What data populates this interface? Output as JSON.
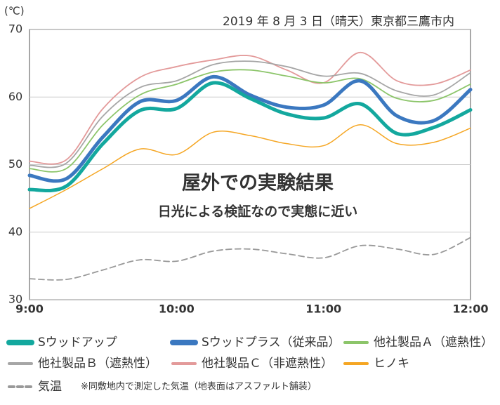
{
  "chart_data": {
    "type": "line",
    "title": "2019 年 8 月 3 日（晴天）東京都三鷹市内",
    "y_label": "(℃)",
    "annotations": [
      "屋外での実験結果",
      "日光による検証なので実態に近い"
    ],
    "note": "※同敷地内で測定した気温（地表面はアスファルト舗装）",
    "categories": [
      "9:00",
      null,
      null,
      null,
      "10:00",
      null,
      null,
      null,
      "11:00",
      null,
      null,
      null,
      "12:00"
    ],
    "ylim": [
      30,
      70
    ],
    "yticks": [
      30,
      40,
      50,
      60,
      70
    ],
    "grid": true,
    "series": [
      {
        "name": "Sウッドアップ",
        "color": "#13a89e",
        "line_width": 5,
        "dashed": false,
        "values": [
          46.3,
          46.8,
          53.1,
          58.0,
          58.3,
          62.1,
          59.8,
          57.5,
          56.9,
          59.0,
          54.6,
          55.5,
          58.1
        ]
      },
      {
        "name": "Sウッドプラス（従来品）",
        "color": "#3b78c0",
        "line_width": 5,
        "dashed": false,
        "values": [
          48.4,
          47.9,
          54.1,
          59.3,
          59.5,
          63.0,
          60.3,
          58.5,
          58.8,
          62.4,
          57.2,
          56.5,
          61.1
        ]
      },
      {
        "name": "他社製品Ａ（遮熱性）",
        "color": "#8cc56a",
        "line_width": 1.8,
        "dashed": false,
        "values": [
          49.4,
          49.4,
          55.9,
          60.3,
          61.9,
          63.7,
          64.0,
          63.1,
          62.1,
          62.7,
          59.8,
          59.5,
          61.9
        ]
      },
      {
        "name": "他社製品Ｂ（遮熱性）",
        "color": "#a6a6a6",
        "line_width": 1.8,
        "dashed": false,
        "values": [
          49.9,
          50.2,
          57.2,
          61.4,
          62.4,
          64.8,
          65.3,
          64.5,
          63.1,
          63.5,
          60.9,
          60.3,
          63.6
        ]
      },
      {
        "name": "他社製品Ｃ（非遮熱性）",
        "color": "#e39a9a",
        "line_width": 1.8,
        "dashed": false,
        "values": [
          50.5,
          50.7,
          58.3,
          62.9,
          64.5,
          65.5,
          66.1,
          64.0,
          62.1,
          66.6,
          62.4,
          61.9,
          64.0
        ]
      },
      {
        "name": "ヒノキ",
        "color": "#f5a623",
        "line_width": 1.5,
        "dashed": false,
        "values": [
          43.5,
          46.3,
          49.4,
          52.3,
          51.5,
          54.8,
          54.3,
          53.1,
          52.8,
          55.9,
          53.1,
          53.3,
          55.4
        ]
      },
      {
        "name": "気温",
        "color": "#999999",
        "line_width": 1.8,
        "dashed": true,
        "values": [
          33.1,
          33.0,
          34.4,
          35.9,
          35.7,
          37.2,
          37.5,
          36.8,
          36.2,
          38.0,
          37.5,
          36.7,
          39.2
        ]
      }
    ]
  }
}
